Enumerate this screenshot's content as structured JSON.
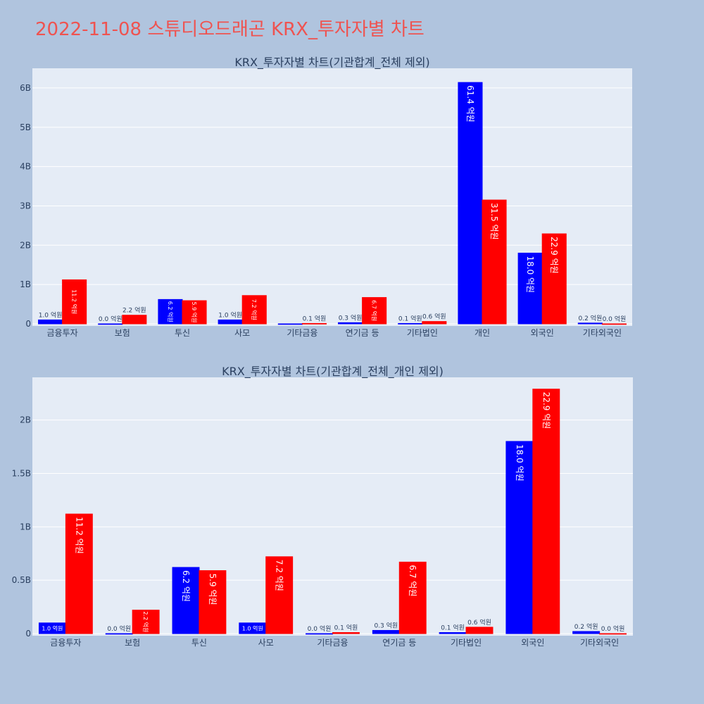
{
  "page_title": "2022-11-08 스튜디오드래곤 KRX_투자자별 차트",
  "colors": {
    "background": "#b0c4de",
    "plot_bg": "#e5ecf6",
    "title": "#ef5350",
    "buy": "#0000ff",
    "sell": "#ff0000"
  },
  "chart_data": [
    {
      "type": "bar",
      "title": "KRX_투자자별 차트(기관합계_전체 제외)",
      "categories": [
        "금융투자",
        "보험",
        "투신",
        "사모",
        "기타금융",
        "연기금 등",
        "기타법인",
        "개인",
        "외국인",
        "기타외국인"
      ],
      "series": [
        {
          "color": "#0000ff",
          "values": [
            0.1,
            0.0,
            0.62,
            0.1,
            0.0,
            0.03,
            0.01,
            6.14,
            1.8,
            0.02
          ],
          "labels": [
            "1.0 억원",
            "0.0 억원",
            "6.2 억원",
            "1.0 억원",
            "",
            "0.3 억원",
            "0.1 억원",
            "61.4 억원",
            "18.0 억원",
            "0.2 억원"
          ]
        },
        {
          "color": "#ff0000",
          "values": [
            1.12,
            0.22,
            0.59,
            0.72,
            0.01,
            0.67,
            0.06,
            3.15,
            2.29,
            0.0
          ],
          "labels": [
            "11.2 억원",
            "2.2 억원",
            "5.9 억원",
            "7.2 억원",
            "0.1 억원",
            "6.7 억원",
            "0.6 억원",
            "31.5 억원",
            "22.9 억원",
            "0.0 억원"
          ]
        }
      ],
      "ylim": [
        0,
        6.5
      ],
      "yticks": [
        0,
        1,
        2,
        3,
        4,
        5,
        6
      ],
      "ytick_labels": [
        "0",
        "1B",
        "2B",
        "3B",
        "4B",
        "5B",
        "6B"
      ],
      "grid": true
    },
    {
      "type": "bar",
      "title": "KRX_투자자별 차트(기관합계_전체_개인 제외)",
      "categories": [
        "금융투자",
        "보험",
        "투신",
        "사모",
        "기타금융",
        "연기금 등",
        "기타법인",
        "외국인",
        "기타외국인"
      ],
      "series": [
        {
          "color": "#0000ff",
          "values": [
            0.1,
            0.0,
            0.62,
            0.1,
            0.0,
            0.03,
            0.01,
            1.8,
            0.02
          ],
          "labels": [
            "1.0 억원",
            "0.0 억원",
            "6.2 억원",
            "1.0 억원",
            "0.0 억원",
            "0.3 억원",
            "0.1 억원",
            "18.0 억원",
            "0.2 억원"
          ]
        },
        {
          "color": "#ff0000",
          "values": [
            1.12,
            0.22,
            0.59,
            0.72,
            0.01,
            0.67,
            0.06,
            2.29,
            0.0
          ],
          "labels": [
            "11.2 억원",
            "2.2 억원",
            "5.9 억원",
            "7.2 억원",
            "0.1 억원",
            "6.7 억원",
            "0.6 억원",
            "22.9 억원",
            "0.0 억원"
          ]
        }
      ],
      "ylim": [
        0,
        2.4
      ],
      "yticks": [
        0,
        0.5,
        1,
        1.5,
        2
      ],
      "ytick_labels": [
        "0",
        "0.5B",
        "1B",
        "1.5B",
        "2B"
      ],
      "grid": true
    }
  ]
}
